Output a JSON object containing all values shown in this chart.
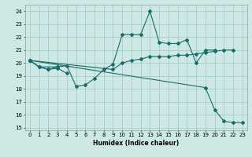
{
  "title": "",
  "xlabel": "Humidex (Indice chaleur)",
  "bg_color": "#cde8e5",
  "grid_color": "#a0c8c4",
  "line_color": "#1a6b6b",
  "xlim": [
    -0.5,
    23.5
  ],
  "ylim": [
    14.8,
    24.5
  ],
  "yticks": [
    15,
    16,
    17,
    18,
    19,
    20,
    21,
    22,
    23,
    24
  ],
  "xticks": [
    0,
    1,
    2,
    3,
    4,
    5,
    6,
    7,
    8,
    9,
    10,
    11,
    12,
    13,
    14,
    15,
    16,
    17,
    18,
    19,
    20,
    21,
    22,
    23
  ],
  "series": [
    {
      "x": [
        0,
        1,
        2,
        3,
        4,
        5,
        6,
        7,
        8,
        9,
        10,
        11,
        12,
        13,
        14,
        15,
        16,
        17,
        18,
        19,
        20
      ],
      "y": [
        20.2,
        19.7,
        19.5,
        19.7,
        19.8,
        18.2,
        18.3,
        18.8,
        19.5,
        19.9,
        22.2,
        22.2,
        22.2,
        24.0,
        21.6,
        21.5,
        21.5,
        21.8,
        20.0,
        21.0,
        21.0
      ]
    },
    {
      "x": [
        0,
        1,
        3
      ],
      "y": [
        20.2,
        19.7,
        19.7
      ]
    },
    {
      "x": [
        0,
        1,
        2,
        3,
        4
      ],
      "y": [
        20.2,
        19.7,
        19.5,
        19.6,
        19.2
      ]
    },
    {
      "x": [
        0,
        9,
        10,
        11,
        12,
        13,
        14,
        15,
        16,
        17,
        18,
        19,
        20,
        21,
        22
      ],
      "y": [
        20.2,
        19.5,
        20.0,
        20.2,
        20.3,
        20.5,
        20.5,
        20.5,
        20.6,
        20.6,
        20.7,
        20.8,
        20.9,
        21.0,
        21.0
      ]
    },
    {
      "x": [
        0,
        19,
        20,
        21,
        22,
        23
      ],
      "y": [
        20.2,
        18.1,
        16.4,
        15.5,
        15.4,
        15.4
      ]
    }
  ]
}
